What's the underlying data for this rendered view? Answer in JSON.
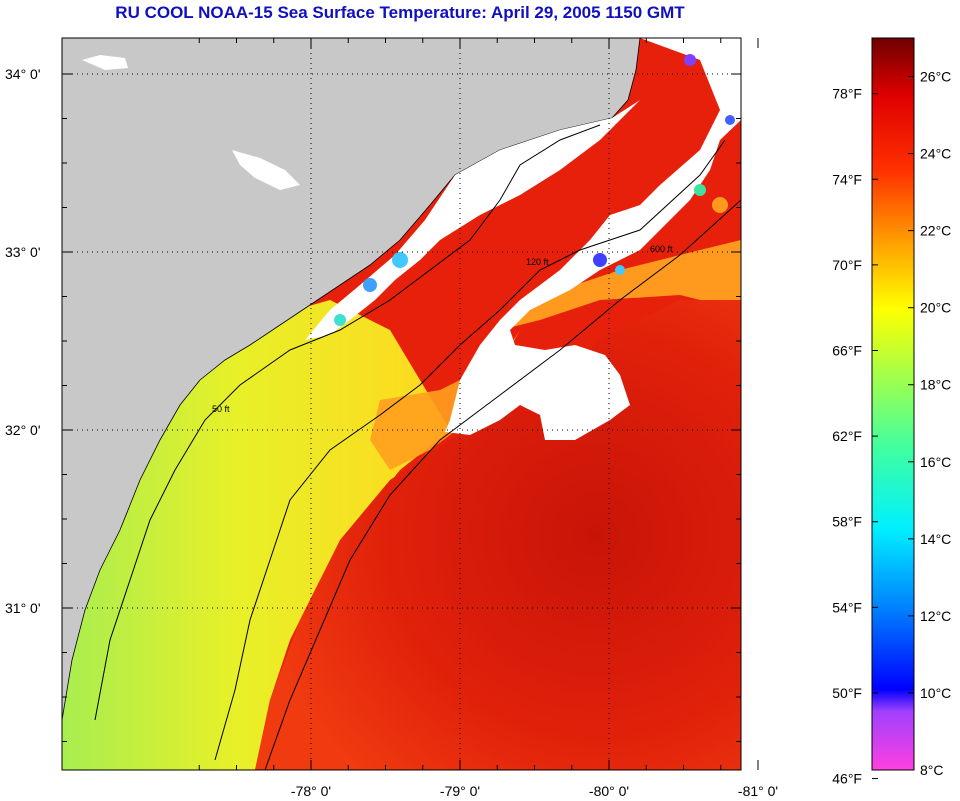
{
  "title": "RU COOL  NOAA-15  Sea Surface Temperature:  April 29, 2005 1150 GMT",
  "map": {
    "lat_ticks": [
      {
        "value": 34,
        "label": "34° 0'"
      },
      {
        "value": 33,
        "label": "33° 0'"
      },
      {
        "value": 32,
        "label": "32° 0'"
      },
      {
        "value": 31,
        "label": "31° 0'"
      }
    ],
    "lon_ticks": [
      {
        "value": -81,
        "label": "-81° 0'"
      },
      {
        "value": -80,
        "label": "-80° 0'"
      },
      {
        "value": -79,
        "label": "-79° 0'"
      },
      {
        "value": -78,
        "label": "-78° 0'"
      }
    ],
    "contour_labels": [
      "50 ft",
      "120 ft",
      "600 ft"
    ],
    "colors": {
      "land": "#c8c8c8",
      "cloud": "#ffffff",
      "coastal_sst": "#b4f046",
      "shelf_sst": "#ffe61e",
      "gulf_stream": "#e6200a",
      "mid_shelf": "#ffa01e"
    }
  },
  "colorbar": {
    "fahrenheit": [
      "46°F",
      "50°F",
      "54°F",
      "58°F",
      "62°F",
      "66°F",
      "70°F",
      "74°F",
      "78°F"
    ],
    "celsius": [
      "8°C",
      "10°C",
      "12°C",
      "14°C",
      "16°C",
      "18°C",
      "20°C",
      "22°C",
      "24°C",
      "26°C"
    ],
    "range_c": [
      8,
      27
    ]
  }
}
